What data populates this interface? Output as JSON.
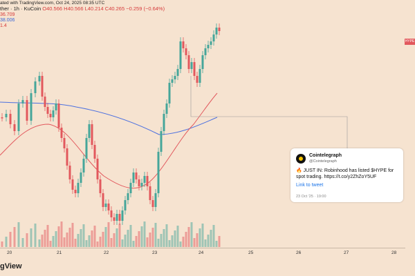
{
  "header": {
    "line1": "ated with TradingView.com, Oct 24, 2025 08:35 UTC",
    "line2_prefix": "ther · 1h · KuCoin",
    "line2_ohlc": "O40.566 H40.566 L40.214 C40.265 −0.259 (−0.64%)",
    "line3": "36.709",
    "line4": "38.006",
    "line5": "1.4"
  },
  "price_tag": "HYPE",
  "x_axis": {
    "ticks": [
      "20",
      "21",
      "22",
      "23",
      "24",
      "25",
      "26",
      "27",
      "28"
    ]
  },
  "footer": {
    "logo_text": "gView"
  },
  "tweet_card": {
    "name": "Cointelegraph",
    "handle": "@Cointelegraph",
    "text": "🔥 JUST IN: Robinhood has listed $HYPE for spot trading. https://t.co/y2ZhZoY5UF",
    "link_text": "Link to tweet",
    "timestamp": "23 Oct '25 · 19:00"
  },
  "colors": {
    "background": "#f6e3d0",
    "up_candle": "#45a69a",
    "down_candle": "#e2585d",
    "ma_blue": "#4a6fe0",
    "ma_red": "#e2585d",
    "annotation_line": "#999999"
  },
  "icons": [
    "avatar-logo-icon",
    "fire-emoji-icon"
  ]
}
